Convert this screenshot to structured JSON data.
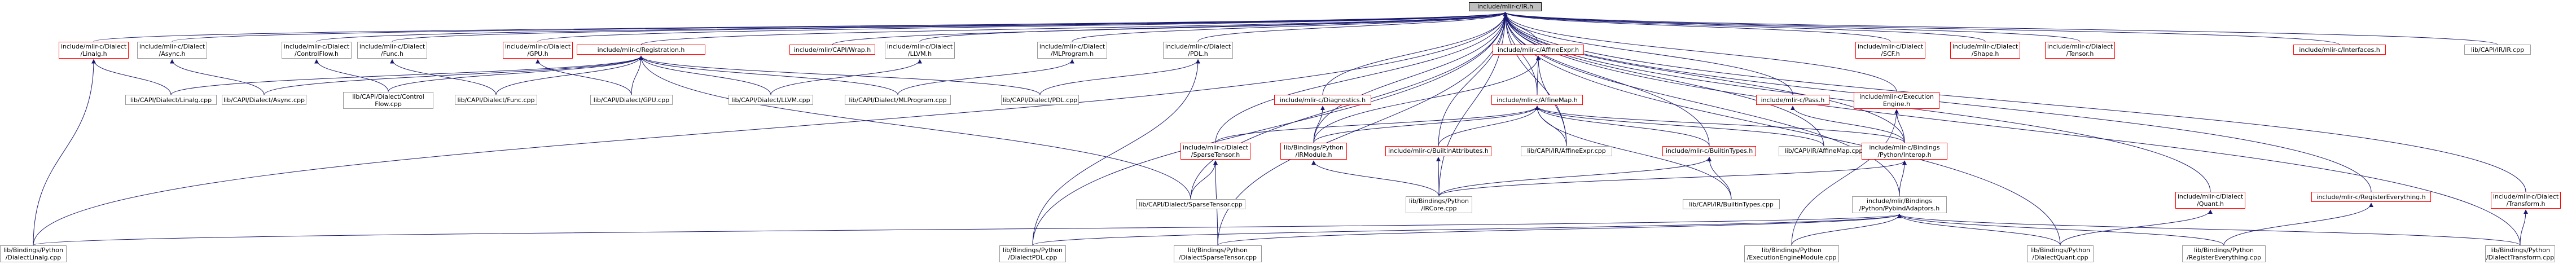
{
  "graph": {
    "root": "include/mlir-c/IR.h",
    "colors": {
      "edge": "#191970",
      "missing_border": "#ff0000",
      "node_border": "#999999",
      "root_fill": "#bfbfbf"
    },
    "nodes": [
      {
        "id": "ir",
        "label": "include/mlir-c/IR.h",
        "kind": "root"
      },
      {
        "id": "linalg_h",
        "label": "include/mlir-c/Dialect\n/Linalg.h",
        "kind": "missing"
      },
      {
        "id": "async_h",
        "label": "include/mlir-c/Dialect\n/Async.h",
        "kind": "normal"
      },
      {
        "id": "cf_h",
        "label": "include/mlir-c/Dialect\n/ControlFlow.h",
        "kind": "normal"
      },
      {
        "id": "func_h",
        "label": "include/mlir-c/Dialect\n/Func.h",
        "kind": "normal"
      },
      {
        "id": "gpu_h",
        "label": "include/mlir-c/Dialect\n/GPU.h",
        "kind": "missing"
      },
      {
        "id": "reg_h",
        "label": "include/mlir-c/Registration.h",
        "kind": "missing"
      },
      {
        "id": "wrap_h",
        "label": "include/mlir/CAPI/Wrap.h",
        "kind": "missing"
      },
      {
        "id": "llvm_h",
        "label": "include/mlir-c/Dialect\n/LLVM.h",
        "kind": "normal"
      },
      {
        "id": "ml_h",
        "label": "include/mlir-c/Dialect\n/MLProgram.h",
        "kind": "normal"
      },
      {
        "id": "pdl_h",
        "label": "include/mlir-c/Dialect\n/PDL.h",
        "kind": "normal"
      },
      {
        "id": "ae_h",
        "label": "include/mlir-c/AffineExpr.h",
        "kind": "missing"
      },
      {
        "id": "scf_h",
        "label": "include/mlir-c/Dialect\n/SCF.h",
        "kind": "missing"
      },
      {
        "id": "shape_h",
        "label": "include/mlir-c/Dialect\n/Shape.h",
        "kind": "missing"
      },
      {
        "id": "tensor_h",
        "label": "include/mlir-c/Dialect\n/Tensor.h",
        "kind": "missing"
      },
      {
        "id": "ifaces_h",
        "label": "include/mlir-c/Interfaces.h",
        "kind": "missing"
      },
      {
        "id": "ir_cpp",
        "label": "lib/CAPI/IR/IR.cpp",
        "kind": "normal"
      },
      {
        "id": "linalg_cpp",
        "label": "lib/CAPI/Dialect/Linalg.cpp",
        "kind": "normal"
      },
      {
        "id": "async_cpp",
        "label": "lib/CAPI/Dialect/Async.cpp",
        "kind": "normal"
      },
      {
        "id": "cf_cpp",
        "label": "lib/CAPI/Dialect/Control\nFlow.cpp",
        "kind": "normal"
      },
      {
        "id": "func_cpp",
        "label": "lib/CAPI/Dialect/Func.cpp",
        "kind": "normal"
      },
      {
        "id": "gpu_cpp",
        "label": "lib/CAPI/Dialect/GPU.cpp",
        "kind": "normal"
      },
      {
        "id": "llvm_cpp",
        "label": "lib/CAPI/Dialect/LLVM.cpp",
        "kind": "normal"
      },
      {
        "id": "ml_cpp",
        "label": "lib/CAPI/Dialect/MLProgram.cpp",
        "kind": "normal"
      },
      {
        "id": "pdl_cpp",
        "label": "lib/CAPI/Dialect/PDL.cpp",
        "kind": "normal"
      },
      {
        "id": "diag_h",
        "label": "include/mlir-c/Diagnostics.h",
        "kind": "missing"
      },
      {
        "id": "am_h",
        "label": "include/mlir-c/AffineMap.h",
        "kind": "missing"
      },
      {
        "id": "pass_h",
        "label": "include/mlir-c/Pass.h",
        "kind": "missing"
      },
      {
        "id": "exec_h",
        "label": "include/mlir-c/Execution\nEngine.h",
        "kind": "missing"
      },
      {
        "id": "st_h",
        "label": "include/mlir-c/Dialect\n/SparseTensor.h",
        "kind": "missing"
      },
      {
        "id": "irmod",
        "label": "lib/Bindings/Python\n/IRModule.h",
        "kind": "missing"
      },
      {
        "id": "battr_h",
        "label": "include/mlir-c/BuiltinAttributes.h",
        "kind": "missing"
      },
      {
        "id": "ae_cpp",
        "label": "lib/CAPI/IR/AffineExpr.cpp",
        "kind": "normal"
      },
      {
        "id": "btypes_h",
        "label": "include/mlir-c/BuiltinTypes.h",
        "kind": "missing"
      },
      {
        "id": "am_cpp",
        "label": "lib/CAPI/IR/AffineMap.cpp",
        "kind": "normal"
      },
      {
        "id": "interop_h",
        "label": "include/mlir-c/Bindings\n/Python/Interop.h",
        "kind": "missing"
      },
      {
        "id": "quant_h",
        "label": "include/mlir-c/Dialect\n/Quant.h",
        "kind": "missing"
      },
      {
        "id": "regall_h",
        "label": "include/mlir-c/RegisterEverything.h",
        "kind": "missing"
      },
      {
        "id": "transform_h",
        "label": "include/mlir-c/Dialect\n/Transform.h",
        "kind": "missing"
      },
      {
        "id": "st_cpp",
        "label": "lib/CAPI/Dialect/SparseTensor.cpp",
        "kind": "normal"
      },
      {
        "id": "pycore",
        "label": "lib/Bindings/Python\n/IRCore.cpp",
        "kind": "normal"
      },
      {
        "id": "btypes_cpp",
        "label": "lib/CAPI/IR/BuiltinTypes.cpp",
        "kind": "normal"
      },
      {
        "id": "pybind_h",
        "label": "include/mlir/Bindings\n/Python/PybindAdaptors.h",
        "kind": "normal"
      },
      {
        "id": "py_linalg",
        "label": "lib/Bindings/Python\n/DialectLinalg.cpp",
        "kind": "normal"
      },
      {
        "id": "py_pdl",
        "label": "lib/Bindings/Python\n/DialectPDL.cpp",
        "kind": "normal"
      },
      {
        "id": "py_st",
        "label": "lib/Bindings/Python\n/DialectSparseTensor.cpp",
        "kind": "normal"
      },
      {
        "id": "py_exec",
        "label": "lib/Bindings/Python\n/ExecutionEngineModule.cpp",
        "kind": "normal"
      },
      {
        "id": "py_quant",
        "label": "lib/Bindings/Python\n/DialectQuant.cpp",
        "kind": "normal"
      },
      {
        "id": "py_regall",
        "label": "lib/Bindings/Python\n/RegisterEverything.cpp",
        "kind": "normal"
      },
      {
        "id": "py_transform",
        "label": "lib/Bindings/Python\n/DialectTransform.cpp",
        "kind": "normal"
      }
    ],
    "edges": [
      [
        "ir",
        "linalg_h"
      ],
      [
        "ir",
        "async_h"
      ],
      [
        "ir",
        "cf_h"
      ],
      [
        "ir",
        "func_h"
      ],
      [
        "ir",
        "gpu_h"
      ],
      [
        "ir",
        "reg_h"
      ],
      [
        "ir",
        "wrap_h"
      ],
      [
        "ir",
        "llvm_h"
      ],
      [
        "ir",
        "ml_h"
      ],
      [
        "ir",
        "pdl_h"
      ],
      [
        "ir",
        "ae_h"
      ],
      [
        "ir",
        "scf_h"
      ],
      [
        "ir",
        "shape_h"
      ],
      [
        "ir",
        "tensor_h"
      ],
      [
        "ir",
        "ifaces_h"
      ],
      [
        "ir",
        "ir_cpp"
      ],
      [
        "ir",
        "diag_h"
      ],
      [
        "ir",
        "am_h"
      ],
      [
        "ir",
        "pass_h"
      ],
      [
        "ir",
        "exec_h"
      ],
      [
        "ir",
        "st_h"
      ],
      [
        "ir",
        "irmod"
      ],
      [
        "ir",
        "battr_h"
      ],
      [
        "ir",
        "ae_cpp"
      ],
      [
        "ir",
        "btypes_h"
      ],
      [
        "ir",
        "am_cpp"
      ],
      [
        "ir",
        "interop_h"
      ],
      [
        "ir",
        "quant_h"
      ],
      [
        "ir",
        "regall_h"
      ],
      [
        "ir",
        "transform_h"
      ],
      [
        "ir",
        "st_cpp"
      ],
      [
        "ir",
        "pycore"
      ],
      [
        "ir",
        "pybind_h"
      ],
      [
        "ir",
        "py_linalg"
      ],
      [
        "ir",
        "py_pdl"
      ],
      [
        "ir",
        "py_st"
      ],
      [
        "ir",
        "py_quant"
      ],
      [
        "ir",
        "py_transform"
      ],
      [
        "linalg_h",
        "linalg_cpp"
      ],
      [
        "linalg_h",
        "py_linalg"
      ],
      [
        "async_h",
        "async_cpp"
      ],
      [
        "cf_h",
        "cf_cpp"
      ],
      [
        "func_h",
        "func_cpp"
      ],
      [
        "gpu_h",
        "gpu_cpp"
      ],
      [
        "reg_h",
        "linalg_cpp"
      ],
      [
        "reg_h",
        "async_cpp"
      ],
      [
        "reg_h",
        "cf_cpp"
      ],
      [
        "reg_h",
        "func_cpp"
      ],
      [
        "reg_h",
        "gpu_cpp"
      ],
      [
        "reg_h",
        "llvm_cpp"
      ],
      [
        "reg_h",
        "ml_cpp"
      ],
      [
        "reg_h",
        "pdl_cpp"
      ],
      [
        "reg_h",
        "st_cpp"
      ],
      [
        "llvm_h",
        "llvm_cpp"
      ],
      [
        "ml_h",
        "ml_cpp"
      ],
      [
        "pdl_h",
        "pdl_cpp"
      ],
      [
        "pdl_h",
        "py_pdl"
      ],
      [
        "ae_h",
        "am_h"
      ],
      [
        "ae_h",
        "ae_cpp"
      ],
      [
        "ae_h",
        "irmod"
      ],
      [
        "diag_h",
        "irmod"
      ],
      [
        "am_h",
        "st_h"
      ],
      [
        "am_h",
        "irmod"
      ],
      [
        "am_h",
        "battr_h"
      ],
      [
        "am_h",
        "ae_cpp"
      ],
      [
        "am_h",
        "btypes_h"
      ],
      [
        "am_h",
        "am_cpp"
      ],
      [
        "am_h",
        "interop_h"
      ],
      [
        "am_h",
        "btypes_cpp"
      ],
      [
        "pass_h",
        "interop_h"
      ],
      [
        "exec_h",
        "interop_h"
      ],
      [
        "exec_h",
        "py_exec"
      ],
      [
        "st_h",
        "st_cpp"
      ],
      [
        "st_h",
        "py_st"
      ],
      [
        "irmod",
        "pycore"
      ],
      [
        "battr_h",
        "pycore"
      ],
      [
        "btypes_h",
        "pycore"
      ],
      [
        "btypes_h",
        "btypes_cpp"
      ],
      [
        "interop_h",
        "pycore"
      ],
      [
        "interop_h",
        "pybind_h"
      ],
      [
        "quant_h",
        "py_quant"
      ],
      [
        "regall_h",
        "py_regall"
      ],
      [
        "transform_h",
        "py_transform"
      ],
      [
        "pybind_h",
        "py_linalg"
      ],
      [
        "pybind_h",
        "py_pdl"
      ],
      [
        "pybind_h",
        "py_st"
      ],
      [
        "pybind_h",
        "py_exec"
      ],
      [
        "pybind_h",
        "py_quant"
      ],
      [
        "pybind_h",
        "py_regall"
      ],
      [
        "pybind_h",
        "py_transform"
      ]
    ]
  }
}
